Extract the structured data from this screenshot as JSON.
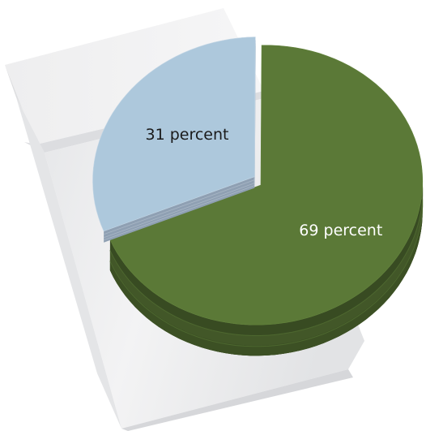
{
  "chart_data": {
    "type": "pie",
    "title": "",
    "slices": [
      {
        "value": 69,
        "label": "69 percent",
        "color": "#5b7937",
        "label_color": "#ffffff"
      },
      {
        "value": 31,
        "label": "31 percent",
        "color": "#adc8dc",
        "label_color": "#1a1a1a"
      }
    ],
    "three_d": true,
    "exploded_slice": "31 percent",
    "backdrop": "cigarette-pack"
  }
}
